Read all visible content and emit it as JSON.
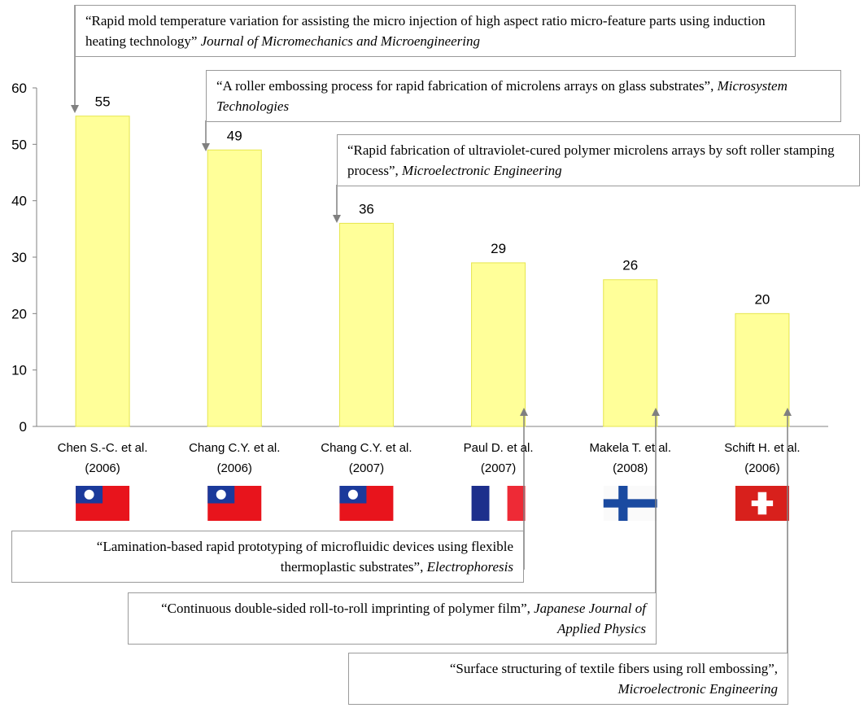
{
  "chart_data": {
    "type": "bar",
    "categories": [
      "Chen S.-C. et al.(2006)",
      "Chang C.Y. et al.(2006)",
      "Chang C.Y. et al.(2007)",
      "Paul D. et al.(2007)",
      "Makela T. et al.(2008)",
      "Schift H. et al.(2006)"
    ],
    "values": [
      55,
      49,
      36,
      29,
      26,
      20
    ],
    "color": "#ffff99",
    "ylim": [
      0,
      60
    ],
    "yticks": [
      0,
      10,
      20,
      30,
      40,
      50,
      60
    ],
    "grid": false,
    "annotations": [
      {
        "text": "“Rapid mold temperature variation for assisting the micro injection of high aspect ratio micro-feature parts using induction heating technology”",
        "source": "Journal of Micromechanics and Microengineering"
      },
      {
        "text": "“A roller embossing process for rapid fabrication of microlens arrays on glass substrates”,",
        "source": "Microsystem Technologies"
      },
      {
        "text": "“Rapid fabrication of ultraviolet-cured polymer microlens arrays by soft roller stamping process”,",
        "source": "Microelectronic Engineering"
      },
      {
        "text": "“Lamination-based rapid prototyping of microfluidic devices using flexible thermoplastic substrates”,",
        "source": "Electrophoresis"
      },
      {
        "text": "“Continuous double-sided roll-to-roll imprinting of polymer film”,",
        "source": "Japanese Journal of Applied Physics"
      },
      {
        "text": "“Surface structuring of textile fibers using roll embossing”,",
        "source": "Microelectronic Engineering"
      }
    ]
  }
}
